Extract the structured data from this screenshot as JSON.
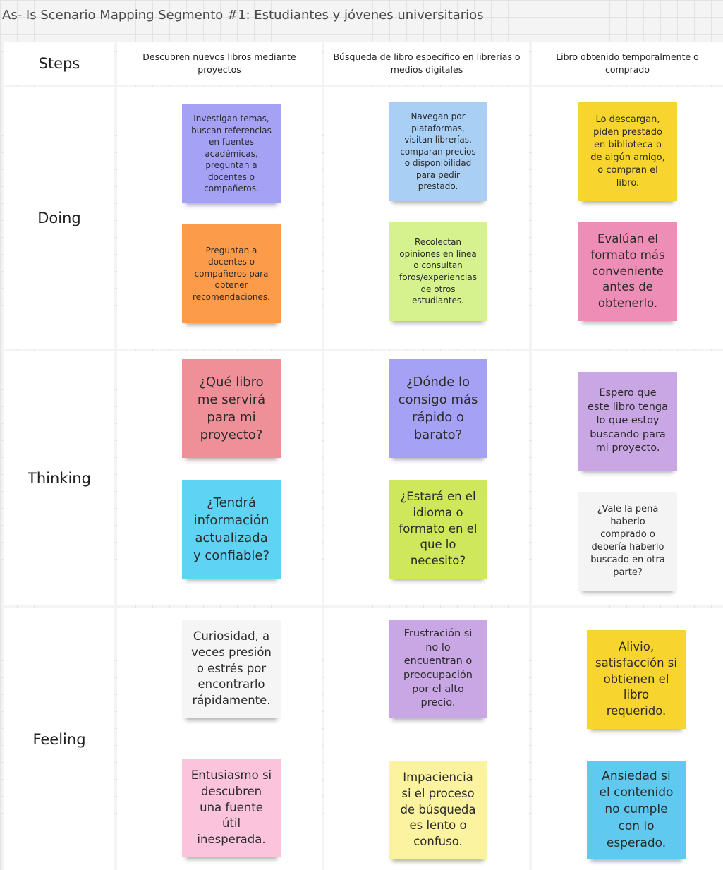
{
  "board": {
    "title": "As- Is Scenario Mapping Segmento #1: Estudiantes y jóvenes universitarios"
  },
  "rows": {
    "steps": "Steps",
    "doing": "Doing",
    "thinking": "Thinking",
    "feeling": "Feeling"
  },
  "steps": [
    "Descubren nuevos libros mediante proyectos",
    "Búsqueda de libro específico en librerías o medios digitales",
    "Libro obtenido temporalmente o comprado"
  ],
  "notes": {
    "doing": [
      {
        "text": "Investigan temas, buscan referencias en fuentes académicas, preguntan a docentes o compañeros.",
        "color": "#a5a1f5"
      },
      {
        "text": "Preguntan a docentes o compañeros para obtener recomendaciones.",
        "color": "#fc9b4a"
      },
      {
        "text": "Navegan por plataformas, visitan librerías, comparan precios o disponibilidad para pedir prestado.",
        "color": "#a9cff5"
      },
      {
        "text": "Recolectan opiniones en línea o consultan foros/experiencias de otros estudiantes.",
        "color": "#d5f28e"
      },
      {
        "text": "Lo descargan, piden prestado en biblioteca o de algún amigo, o compran el libro.",
        "color": "#f7d42e"
      },
      {
        "text": "Evalúan el formato más conveniente antes de obtenerlo.",
        "color": "#ee8db5"
      }
    ],
    "thinking": [
      {
        "text": "¿Qué libro me servirá para mi proyecto?",
        "color": "#ef8f97"
      },
      {
        "text": "¿Tendrá información actualizada y confiable?",
        "color": "#5fd3f4"
      },
      {
        "text": "¿Dónde lo consigo más rápido o barato?",
        "color": "#a5a1f5"
      },
      {
        "text": "¿Estará en el idioma o formato en el que lo necesito?",
        "color": "#cfe75a"
      },
      {
        "text": "Espero que este libro tenga lo que estoy buscando para mi proyecto.",
        "color": "#c9a6e4"
      },
      {
        "text": "¿Vale la pena haberlo comprado o debería haberlo buscado en otra parte?",
        "color": "#f4f4f4"
      }
    ],
    "feeling": [
      {
        "text": "Curiosidad, a veces presión o estrés por encontrarlo rápidamente.",
        "color": "#f5f5f5"
      },
      {
        "text": "Entusiasmo si descubren una fuente útil inesperada.",
        "color": "#fbc4dc"
      },
      {
        "text": "Frustración si no lo encuentran o preocupación por el alto precio.",
        "color": "#c9a6e4"
      },
      {
        "text": "Impaciencia si el proceso de búsqueda es lento o confuso.",
        "color": "#fcf3a0"
      },
      {
        "text": "Alivio, satisfacción si obtienen el libro requerido.",
        "color": "#f7d42e"
      },
      {
        "text": "Ansiedad si el contenido no cumple con lo esperado.",
        "color": "#5fc9f0"
      }
    ]
  }
}
